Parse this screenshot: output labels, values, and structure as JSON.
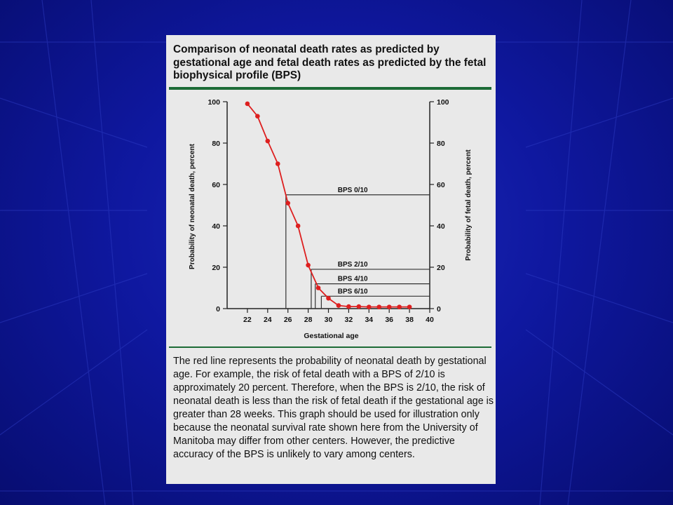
{
  "title": "Comparison of neonatal death rates as predicted by gestational age and fetal death rates as predicted by the fetal biophysical profile (BPS)",
  "caption": "The red line represents the probability of neonatal death by gestational age. For example, the risk of fetal death with a BPS of 2/10 is approximately 20 percent. Therefore, when the BPS is 2/10, the risk of neonatal death is less than the risk of fetal death if the gestational age is greater than 28 weeks. This graph should be used for illustration only because the neonatal survival rate shown here from the University of Manitoba may differ from other centers. However, the predictive accuracy of the BPS is unlikely to vary among centers.",
  "colors": {
    "line": "#dd1f1f",
    "rule": "#1c6b36",
    "axis": "#222222"
  },
  "chart_data": {
    "type": "line",
    "xlabel": "Gestational age",
    "ylabel": "Probability of neonatal death, percent",
    "ylabel_right": "Probability of fetal death, percent",
    "xlim": [
      20,
      40
    ],
    "ylim": [
      0,
      100
    ],
    "xticks": [
      22,
      24,
      26,
      28,
      30,
      32,
      34,
      36,
      38,
      40
    ],
    "yticks": [
      0,
      20,
      40,
      60,
      80,
      100
    ],
    "grid": false,
    "series": [
      {
        "x": [
          22,
          23,
          24,
          25,
          26,
          27,
          28,
          29,
          30,
          31,
          32,
          33,
          34,
          35,
          36,
          37,
          38
        ],
        "y": [
          99,
          93,
          81,
          70,
          51,
          40,
          21,
          10,
          5,
          1.5,
          1,
          1,
          0.8,
          0.8,
          0.8,
          0.8,
          0.8
        ]
      }
    ],
    "annotations": [
      {
        "label": "BPS 0/10",
        "y": 55,
        "x_start": 25.8
      },
      {
        "label": "BPS 2/10",
        "y": 19,
        "x_start": 28.3
      },
      {
        "label": "BPS 4/10",
        "y": 12,
        "x_start": 28.7
      },
      {
        "label": "BPS 6/10",
        "y": 6,
        "x_start": 29.3
      }
    ]
  }
}
